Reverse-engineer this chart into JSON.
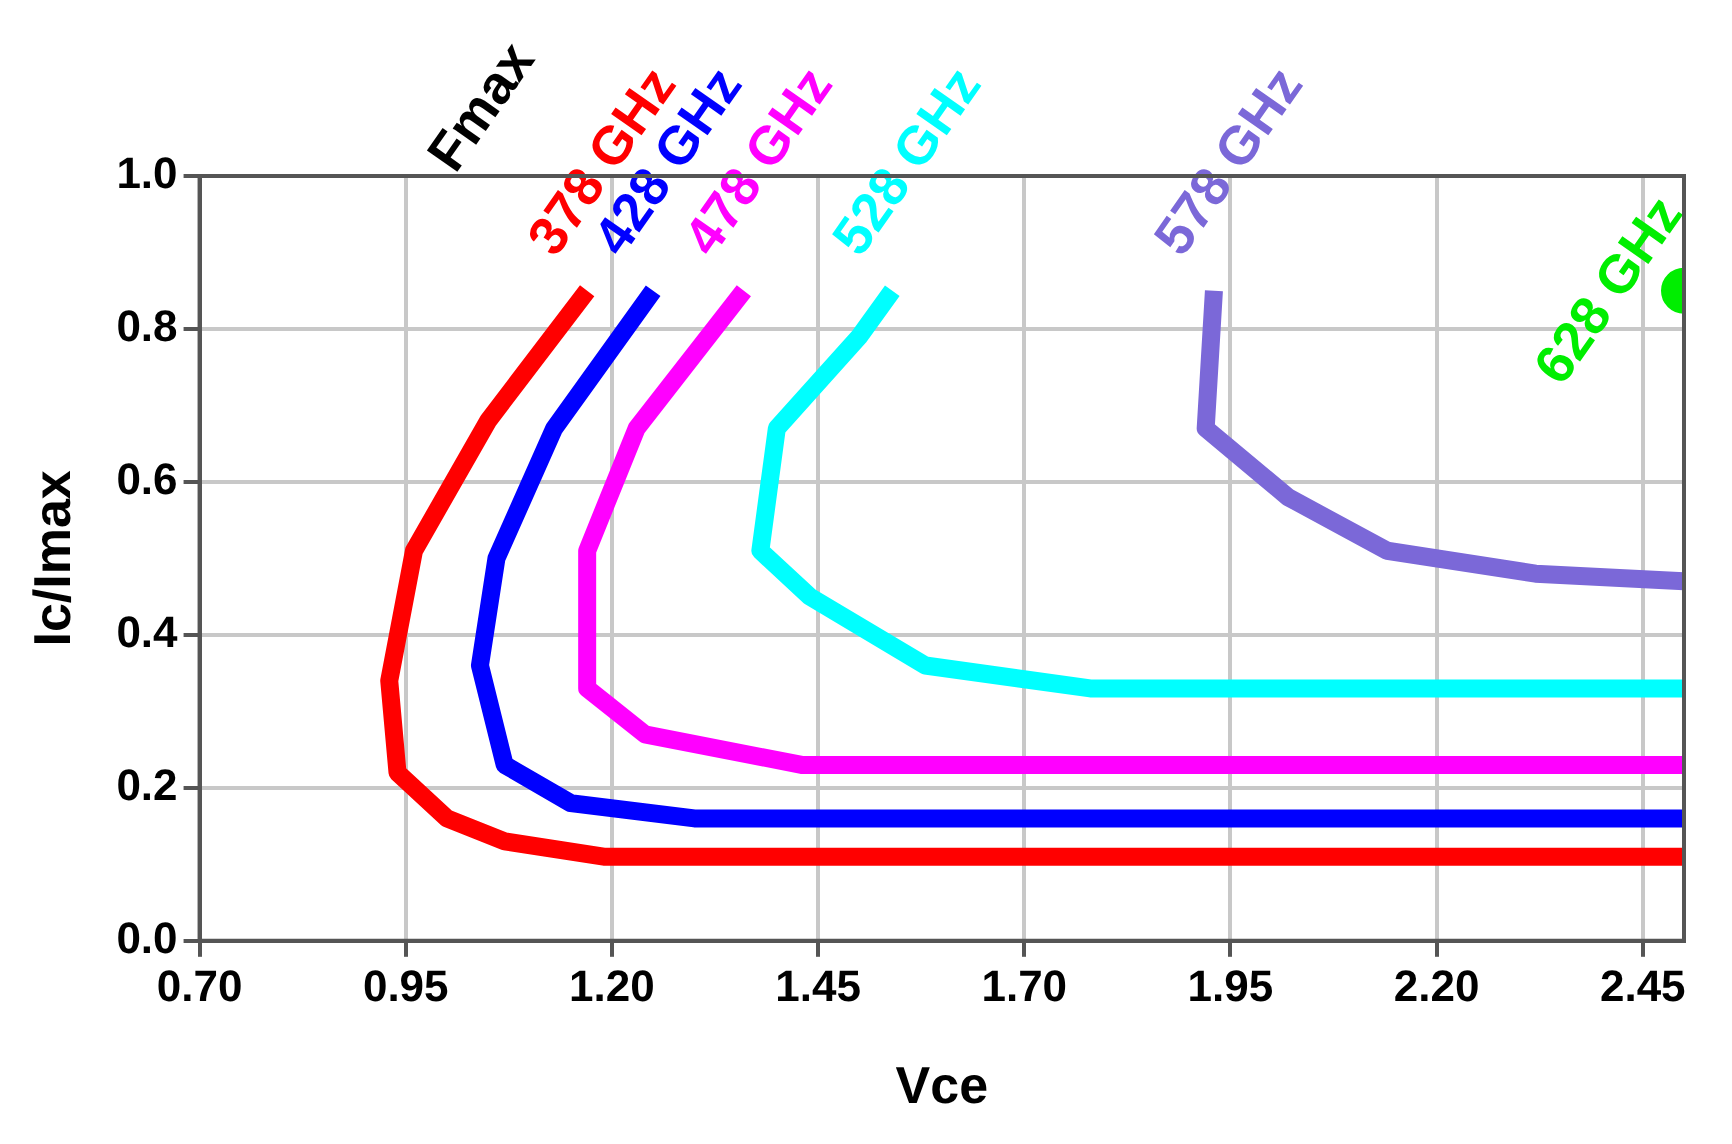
{
  "chart_data": {
    "type": "line",
    "legend_title": "Fmax",
    "xlabel": "Vce",
    "ylabel": "Ic/Imax",
    "xlim": [
      0.7,
      2.5
    ],
    "xticks": [
      {
        "value": 0.7,
        "label": "0.70"
      },
      0.95,
      {
        "value": 1.2,
        "label": "1.20"
      },
      1.45,
      {
        "value": 1.7,
        "label": "1.70"
      },
      1.95,
      {
        "value": 2.2,
        "label": "2.20"
      },
      2.45
    ],
    "ylim": [
      0,
      1
    ],
    "yticks": [
      {
        "value": 0,
        "label": "0.0"
      },
      0.2,
      0.4,
      0.6,
      0.8,
      {
        "value": 1,
        "label": "1.0"
      }
    ],
    "grid": true,
    "legend": false,
    "marker": "none",
    "line_style": "solid",
    "series": [
      {
        "name": "378 GHz",
        "color": "#ff0000",
        "x": [
          1.17,
          1.05,
          0.96,
          0.93,
          0.94,
          1.0,
          1.07,
          1.19,
          1.5,
          2.0,
          2.5
        ],
        "values": [
          0.85,
          0.68,
          0.51,
          0.34,
          0.22,
          0.16,
          0.13,
          0.11,
          0.11,
          0.11,
          0.11
        ]
      },
      {
        "name": "428 GHz",
        "color": "#0000ff",
        "x": [
          1.25,
          1.13,
          1.06,
          1.04,
          1.07,
          1.15,
          1.3,
          1.7,
          2.1,
          2.5
        ],
        "values": [
          0.85,
          0.67,
          0.5,
          0.36,
          0.23,
          0.18,
          0.16,
          0.16,
          0.16,
          0.16
        ]
      },
      {
        "name": "478 GHz",
        "color": "#ff00ff",
        "x": [
          1.36,
          1.23,
          1.17,
          1.17,
          1.24,
          1.43,
          1.8,
          2.2,
          2.5
        ],
        "values": [
          0.85,
          0.67,
          0.51,
          0.33,
          0.27,
          0.23,
          0.23,
          0.23,
          0.23
        ]
      },
      {
        "name": "528 GHz",
        "color": "#00ffff",
        "x": [
          1.54,
          1.5,
          1.4,
          1.38,
          1.44,
          1.58,
          1.78,
          2.14,
          2.5
        ],
        "values": [
          0.85,
          0.79,
          0.67,
          0.51,
          0.45,
          0.36,
          0.33,
          0.33,
          0.33
        ]
      },
      {
        "name": "578 GHz",
        "color": "#7b68d8",
        "x": [
          1.93,
          1.92,
          2.02,
          2.14,
          2.32,
          2.5
        ],
        "values": [
          0.85,
          0.67,
          0.58,
          0.51,
          0.48,
          0.47
        ]
      },
      {
        "name": "628 GHz",
        "color": "#00ee00",
        "marker": "circle",
        "x": [
          2.5
        ],
        "values": [
          0.85
        ]
      }
    ]
  }
}
